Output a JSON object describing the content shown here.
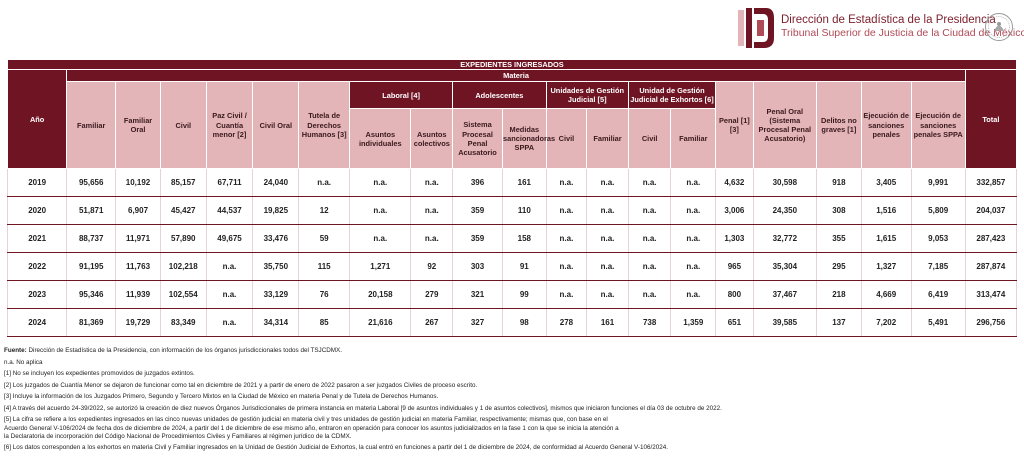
{
  "header": {
    "title": "Dirección de Estadística de la Presidencia",
    "subtitle": "Tribunal Superior de Justicia de la Ciudad de México",
    "brand_color": "#6e1423",
    "logo_icon": "tsj-logo-icon",
    "seal_icon": "national-seal-icon"
  },
  "table": {
    "banner": "EXPEDIENTES INGRESADOS",
    "year_header": "Año",
    "materia_header": "Materia",
    "total_header": "Total",
    "columns": {
      "familiar": "Familiar",
      "familiar_oral": "Familiar Oral",
      "civil": "Civil",
      "paz_civil": "Paz Civil / Cuantía menor [2]",
      "civil_oral": "Civil Oral",
      "tutela": "Tutela de Derechos Humanos [3]",
      "laboral": "Laboral [4]",
      "asuntos_individuales": "Asuntos individuales",
      "asuntos_colectivos": "Asuntos colectivos",
      "adolescentes": "Adolescentes",
      "sistema_procesal": "Sistema Procesal Penal Acusatorio",
      "medidas": "Medidas sancionadoras SPPA",
      "ugj": "Unidades de Gestión Judicial [5]",
      "ugj_civil": "Civil",
      "ugj_familiar": "Familiar",
      "ugje": "Unidad de Gestión Judicial de Exhortos [6]",
      "ugje_civil": "Civil",
      "ugje_familiar": "Familiar",
      "penal": "Penal [1][3]",
      "penal_oral": "Penal Oral (Sistema Procesal Penal Acusatorio)",
      "delitos": "Delitos no graves [1]",
      "ejecucion": "Ejecución de sanciones penales",
      "ejecucion_sppa": "Ejecución de sanciones penales SPPA"
    },
    "rows": [
      [
        "2019",
        "95,656",
        "10,192",
        "85,157",
        "67,711",
        "24,040",
        "n.a.",
        "n.a.",
        "n.a.",
        "396",
        "161",
        "n.a.",
        "n.a.",
        "n.a.",
        "n.a.",
        "4,632",
        "30,598",
        "918",
        "3,405",
        "9,991",
        "332,857"
      ],
      [
        "2020",
        "51,871",
        "6,907",
        "45,427",
        "44,537",
        "19,825",
        "12",
        "n.a.",
        "n.a.",
        "359",
        "110",
        "n.a.",
        "n.a.",
        "n.a.",
        "n.a.",
        "3,006",
        "24,350",
        "308",
        "1,516",
        "5,809",
        "204,037"
      ],
      [
        "2021",
        "88,737",
        "11,971",
        "57,890",
        "49,675",
        "33,476",
        "59",
        "n.a.",
        "n.a.",
        "359",
        "158",
        "n.a.",
        "n.a.",
        "n.a.",
        "n.a.",
        "1,303",
        "32,772",
        "355",
        "1,615",
        "9,053",
        "287,423"
      ],
      [
        "2022",
        "91,195",
        "11,763",
        "102,218",
        "n.a.",
        "35,750",
        "115",
        "1,271",
        "92",
        "303",
        "91",
        "n.a.",
        "n.a.",
        "n.a.",
        "n.a.",
        "965",
        "35,304",
        "295",
        "1,327",
        "7,185",
        "287,874"
      ],
      [
        "2023",
        "95,346",
        "11,939",
        "102,554",
        "n.a.",
        "33,129",
        "76",
        "20,158",
        "279",
        "321",
        "99",
        "n.a.",
        "n.a.",
        "n.a.",
        "n.a.",
        "800",
        "37,467",
        "218",
        "4,669",
        "6,419",
        "313,474"
      ],
      [
        "2024",
        "81,369",
        "19,729",
        "83,349",
        "n.a.",
        "34,314",
        "85",
        "21,616",
        "267",
        "327",
        "98",
        "278",
        "161",
        "738",
        "1,359",
        "651",
        "39,585",
        "137",
        "7,202",
        "5,491",
        "296,756"
      ]
    ]
  },
  "notes": {
    "fuente_label": "Fuente:",
    "fuente_text": " Dirección de Estadística de la Presidencia, con información de los órganos jurisdiccionales todos del TSJCDMX.",
    "na": "n.a. No aplica",
    "n1": "[1] No se incluyen los expedientes promovidos de juzgados extintos.",
    "n2": "[2] Los juzgados de Cuantía Menor se dejaron de funcionar como tal en diciembre de 2021 y a partir de enero de 2022 pasaron a ser juzgados Civiles de proceso escrito.",
    "n3": "[3] Incluye la información de los  Juzgados Primero, Segundo y Tercero Mixtos en la Ciudad de México en materia Penal y de Tutela de Derechos Humanos.",
    "n4": "[4] A través del acuerdo 24-39/2022, se autorizó la creación de diez nuevos Órganos Jurisdiccionales de primera instancia en materia Laboral [9 de asuntos individuales y 1 de asuntos colectivos], mismos que iniciaron funciones el día 03 de octubre de 2022.",
    "n5_line1": "[5] La cifra se refiere a los expedientes ingresados en las cinco nuevas unidades de gestión judicial en materia civil y tres unidades de gestión judicial en materia Familiar, respectivamente; mismas que, con base en el",
    "n5_line2": "Acuerdo General V-106/2024 de fecha dos de diciembre de 2024, a partir del 1 de diciembre de ese mismo año, entraron en operación para conocer los asuntos judicializados en la fase 1 con la que se inicia la atención a",
    "n5_line3": "la Declaratoria de incorporación del Código Nacional de Procedimientos Civiles y Familiares al régimen jurídico de la CDMX.",
    "n6": "[6] Los datos corresponden a los exhortos en materia Civil y Familiar ingresados en la Unidad de Gestión Judicial de Exhortos, la cual entró en funciones a partir del 1 de diciembre de 2024, de conformidad al Acuerdo General V-106/2024."
  }
}
